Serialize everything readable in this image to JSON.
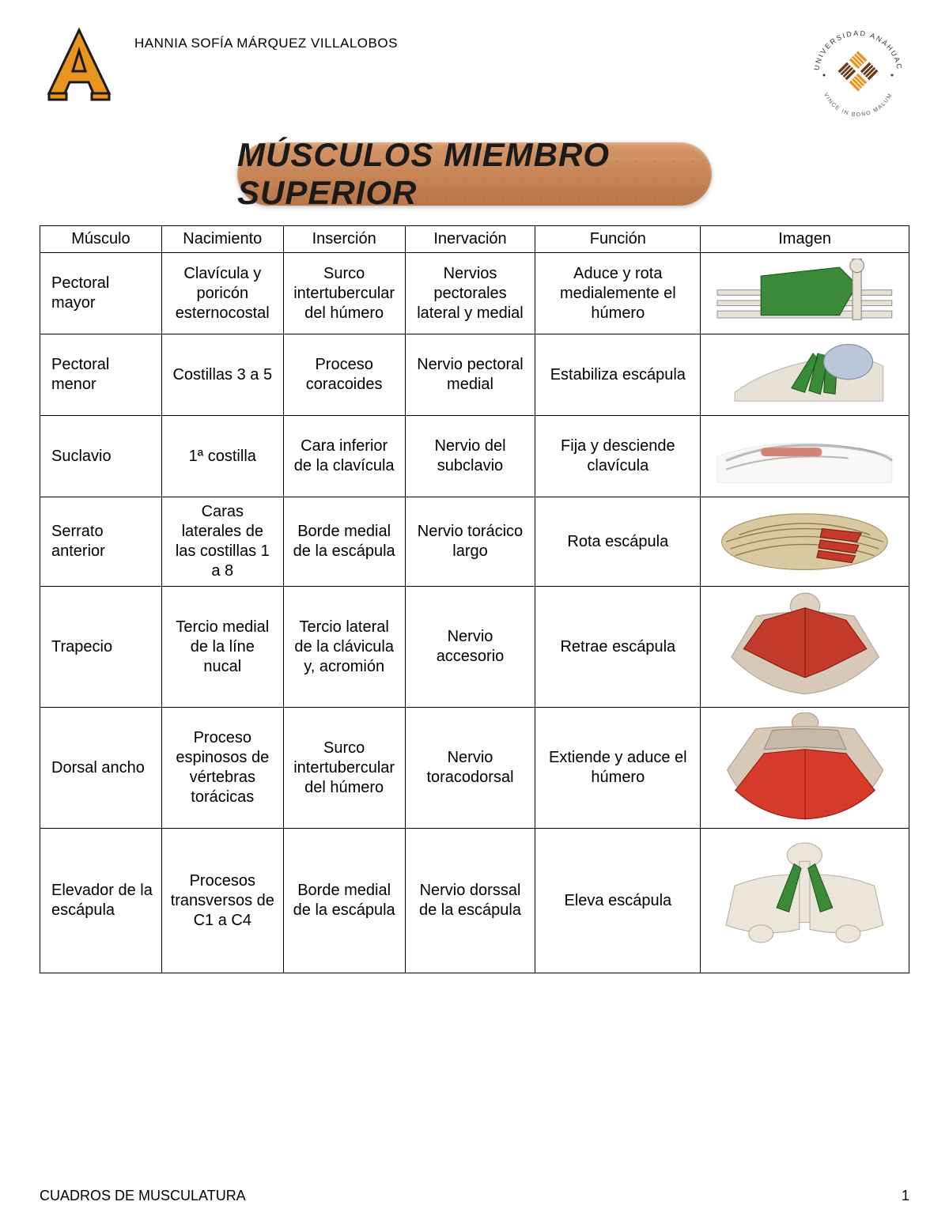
{
  "author": "HANNIA SOFÍA MÁRQUEZ VILLALOBOS",
  "title": "MÚSCULOS MIEMBRO SUPERIOR",
  "footer_text": "CUADROS DE MUSCULATURA",
  "page_number": "1",
  "logo": {
    "letter": "A",
    "fill_color": "#e8941e",
    "stroke_color": "#1a1a1a"
  },
  "seal": {
    "top_text": "UNIVERSIDAD ANÁHUAC",
    "bottom_text": "VINCE IN BONO MALUM",
    "colors": {
      "ring": "#333333",
      "mark1": "#e8941e",
      "mark2": "#6b3a18"
    }
  },
  "banner": {
    "bg_top": "#d79869",
    "bg_mid": "#c88658",
    "bg_bot": "#b87548",
    "text_color": "#1a1a1a"
  },
  "table": {
    "columns": [
      "Músculo",
      "Nacimiento",
      "Inserción",
      "Inervación",
      "Función",
      "Imagen"
    ],
    "border_color": "#000000",
    "font_size_pt": 15,
    "column_widths_pct": [
      14,
      14,
      14,
      15,
      19,
      24
    ],
    "rows": [
      {
        "muscle": "Pectoral mayor",
        "origin": "Clavícula y poricón esternocostal",
        "insertion": "Surco intertubercular del húmero",
        "innervation": "Nervios pectorales lateral y medial",
        "function": "Aduce y rota medialemente el húmero",
        "image": {
          "label": "pectoral-mayor",
          "muscle_color": "#3a8a3a",
          "bone_color": "#e8e2d6"
        },
        "row_height": "normal"
      },
      {
        "muscle": "Pectoral menor",
        "origin": "Costillas 3 a 5",
        "insertion": "Proceso coracoides",
        "innervation": "Nervio pectoral medial",
        "function": "Estabiliza escápula",
        "image": {
          "label": "pectoral-menor",
          "muscle_color": "#3a8a3a",
          "bone_color": "#e8e2d6"
        },
        "row_height": "normal"
      },
      {
        "muscle": "Suclavio",
        "origin": "1ª costilla",
        "insertion": "Cara inferior de la clavícula",
        "innervation": "Nervio del subclavio",
        "function": "Fija y desciende clavícula",
        "image": {
          "label": "subclavio",
          "muscle_color": "#c43a2a",
          "bone_color": "#f2efe9"
        },
        "row_height": "normal"
      },
      {
        "muscle": "Serrato anterior",
        "origin": "Caras laterales de las costillas 1 a 8",
        "insertion": "Borde medial de la escápula",
        "innervation": "Nervio torácico largo",
        "function": "Rota escápula",
        "image": {
          "label": "serrato-anterior",
          "muscle_color": "#c43a2a",
          "bone_color": "#d9c9a3"
        },
        "row_height": "normal"
      },
      {
        "muscle": "Trapecio",
        "origin": "Tercio medial de la líne nucal",
        "insertion": "Tercio lateral de la clávicula y, acromión",
        "innervation": "Nervio accesorio",
        "function": "Retrae escápula",
        "image": {
          "label": "trapecio",
          "muscle_color": "#c43a2a",
          "bone_color": "#e0d0c0"
        },
        "row_height": "tall"
      },
      {
        "muscle": "Dorsal ancho",
        "origin": "Proceso espinosos de vértebras torácicas",
        "insertion": "Surco intertubercular del húmero",
        "innervation": "Nervio toracodorsal",
        "function": "Extiende y aduce el húmero",
        "image": {
          "label": "dorsal-ancho",
          "muscle_color": "#d63a2a",
          "bone_color": "#d8c8b8"
        },
        "row_height": "tall"
      },
      {
        "muscle": "Elevador de la escápula",
        "origin": "Procesos transversos de\nC1 a C4",
        "insertion": "Borde medial de la escápula",
        "innervation": "Nervio dorssal de la escápula",
        "function": "Eleva escápula",
        "image": {
          "label": "elevador-escapula",
          "muscle_color": "#3a8a3a",
          "bone_color": "#ece6da"
        },
        "row_height": "xtall"
      }
    ]
  }
}
